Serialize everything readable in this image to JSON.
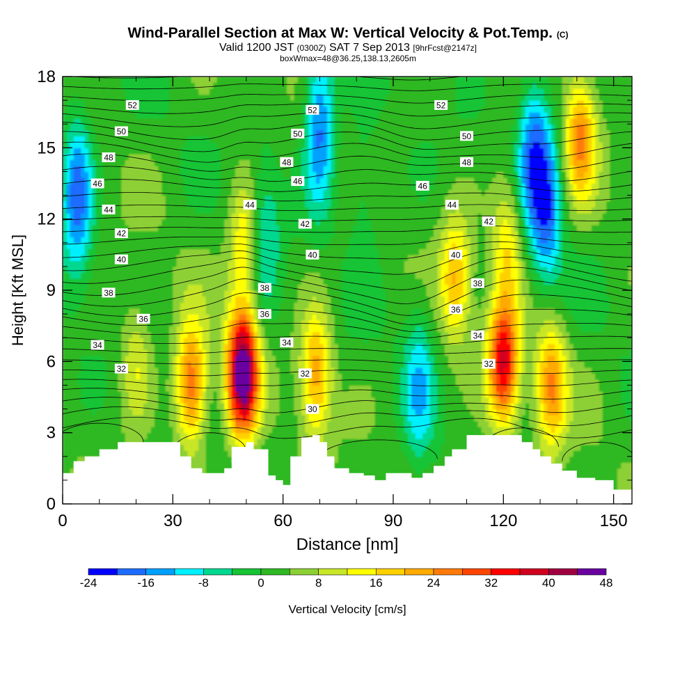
{
  "header": {
    "title": "Wind-Parallel Section at Max W: Vertical Velocity & Pot.Temp.",
    "title_mark": "(C)",
    "valid_prefix": "Valid 1200 JST",
    "valid_utc": "(0300Z)",
    "valid_date": "SAT 7 Sep 2013",
    "forecast_tag": "[9hrFcst@2147z]",
    "box_info": "boxWmax=48@36.25,138.13,2605m"
  },
  "chart_data": {
    "type": "heatmap",
    "xlabel": "Distance [nm]",
    "ylabel": "Height [Kft MSL]",
    "xlim": [
      0,
      155
    ],
    "ylim": [
      0,
      18
    ],
    "x_ticks": [
      0,
      30,
      60,
      90,
      120,
      150
    ],
    "y_ticks": [
      0,
      3,
      6,
      9,
      12,
      15,
      18
    ],
    "x_tick_labels": [
      "0",
      "30",
      "60",
      "90",
      "120",
      "150"
    ],
    "y_tick_labels": [
      "0",
      "3",
      "6",
      "9",
      "12",
      "15",
      "18"
    ],
    "colorbar": {
      "label": "Vertical Velocity [cm/s]",
      "min": -24,
      "max": 48,
      "step": 4,
      "tick_values": [
        -24,
        -16,
        -8,
        0,
        8,
        16,
        24,
        32,
        40,
        48
      ],
      "tick_labels": [
        "-24",
        "-16",
        "-8",
        "0",
        "8",
        "16",
        "24",
        "32",
        "40",
        "48"
      ],
      "colors": [
        "#0000ff",
        "#1e6cff",
        "#00a0ff",
        "#00f0ff",
        "#00d88f",
        "#16c434",
        "#2eb823",
        "#8cd034",
        "#c8e628",
        "#ffff00",
        "#ffd000",
        "#ffaa00",
        "#ff7a0a",
        "#ff4400",
        "#ff0000",
        "#d00020",
        "#a00040",
        "#6a00a0"
      ]
    },
    "updraft_cores": [
      {
        "x": 35,
        "z": 5.0,
        "w": 27
      },
      {
        "x": 49,
        "z": 5.5,
        "w": 48
      },
      {
        "x": 49.5,
        "z": 11.0,
        "w": 14
      },
      {
        "x": 69,
        "z": 5.5,
        "w": 21
      },
      {
        "x": 107,
        "z": 9.5,
        "w": 18
      },
      {
        "x": 120,
        "z": 6.0,
        "w": 34
      },
      {
        "x": 121,
        "z": 11.0,
        "w": 14
      },
      {
        "x": 133,
        "z": 5.0,
        "w": 23
      },
      {
        "x": 141,
        "z": 15.5,
        "w": 22
      },
      {
        "x": 20,
        "z": 6.0,
        "w": 10
      }
    ],
    "downdraft_cores": [
      {
        "x": 4,
        "z": 13.0,
        "w": -20
      },
      {
        "x": 55,
        "z": 11.5,
        "w": -10
      },
      {
        "x": 70,
        "z": 16.0,
        "w": -20
      },
      {
        "x": 82,
        "z": 13.0,
        "w": -6
      },
      {
        "x": 97,
        "z": 5.0,
        "w": -12
      },
      {
        "x": 128,
        "z": 15.0,
        "w": -18
      },
      {
        "x": 132,
        "z": 12.5,
        "w": -18
      }
    ],
    "terrain": {
      "x": [
        0,
        2,
        3,
        5,
        6,
        8,
        10,
        15,
        20,
        25,
        30,
        32,
        35,
        38,
        42,
        44,
        46,
        50,
        52,
        56,
        58,
        60,
        62,
        65,
        68,
        70,
        72,
        74,
        78,
        82,
        85,
        88,
        92,
        95,
        98,
        101,
        104,
        106,
        110,
        115,
        120,
        125,
        128,
        130,
        133,
        136,
        140,
        145,
        148,
        150,
        155
      ],
      "z": [
        1.3,
        1.3,
        1.8,
        1.8,
        2.0,
        2.0,
        2.3,
        2.6,
        2.6,
        2.6,
        2.6,
        2.0,
        1.5,
        1.3,
        1.3,
        1.5,
        2.4,
        2.6,
        2.3,
        1.2,
        1.0,
        0.8,
        2.0,
        2.8,
        2.9,
        2.6,
        2.0,
        1.5,
        1.3,
        1.2,
        1.0,
        1.3,
        1.3,
        1.1,
        1.3,
        1.6,
        2.0,
        2.3,
        2.9,
        2.9,
        2.9,
        2.6,
        2.3,
        2.0,
        1.7,
        1.4,
        1.1,
        1.0,
        1.0,
        0.6,
        0.6
      ]
    },
    "theta_contours": {
      "levels": [
        30,
        32,
        34,
        36,
        38,
        40,
        42,
        44,
        46,
        48,
        50,
        52
      ],
      "labels": [
        {
          "text": "52",
          "x": 19,
          "z": 16.8
        },
        {
          "text": "50",
          "x": 16,
          "z": 15.7
        },
        {
          "text": "48",
          "x": 12.5,
          "z": 14.6
        },
        {
          "text": "46",
          "x": 9.5,
          "z": 13.5
        },
        {
          "text": "44",
          "x": 12.5,
          "z": 12.4
        },
        {
          "text": "42",
          "x": 16,
          "z": 11.4
        },
        {
          "text": "40",
          "x": 16,
          "z": 10.3
        },
        {
          "text": "38",
          "x": 12.5,
          "z": 8.9
        },
        {
          "text": "36",
          "x": 22,
          "z": 7.8
        },
        {
          "text": "34",
          "x": 9.5,
          "z": 6.7
        },
        {
          "text": "32",
          "x": 16,
          "z": 5.7
        },
        {
          "text": "52",
          "x": 68,
          "z": 16.6
        },
        {
          "text": "50",
          "x": 64,
          "z": 15.6
        },
        {
          "text": "48",
          "x": 61,
          "z": 14.4
        },
        {
          "text": "46",
          "x": 64,
          "z": 13.6
        },
        {
          "text": "44",
          "x": 51,
          "z": 12.6
        },
        {
          "text": "42",
          "x": 66,
          "z": 11.8
        },
        {
          "text": "40",
          "x": 68,
          "z": 10.5
        },
        {
          "text": "38",
          "x": 55,
          "z": 9.1
        },
        {
          "text": "36",
          "x": 55,
          "z": 8.0
        },
        {
          "text": "34",
          "x": 61,
          "z": 6.8
        },
        {
          "text": "32",
          "x": 66,
          "z": 5.5
        },
        {
          "text": "30",
          "x": 68,
          "z": 4.0
        },
        {
          "text": "52",
          "x": 103,
          "z": 16.8
        },
        {
          "text": "50",
          "x": 110,
          "z": 15.5
        },
        {
          "text": "48",
          "x": 110,
          "z": 14.4
        },
        {
          "text": "46",
          "x": 98,
          "z": 13.4
        },
        {
          "text": "44",
          "x": 106,
          "z": 12.6
        },
        {
          "text": "42",
          "x": 116,
          "z": 11.9
        },
        {
          "text": "40",
          "x": 107,
          "z": 10.5
        },
        {
          "text": "38",
          "x": 113,
          "z": 9.3
        },
        {
          "text": "36",
          "x": 107,
          "z": 8.2
        },
        {
          "text": "34",
          "x": 113,
          "z": 7.1
        },
        {
          "text": "32",
          "x": 116,
          "z": 5.9
        }
      ]
    }
  }
}
